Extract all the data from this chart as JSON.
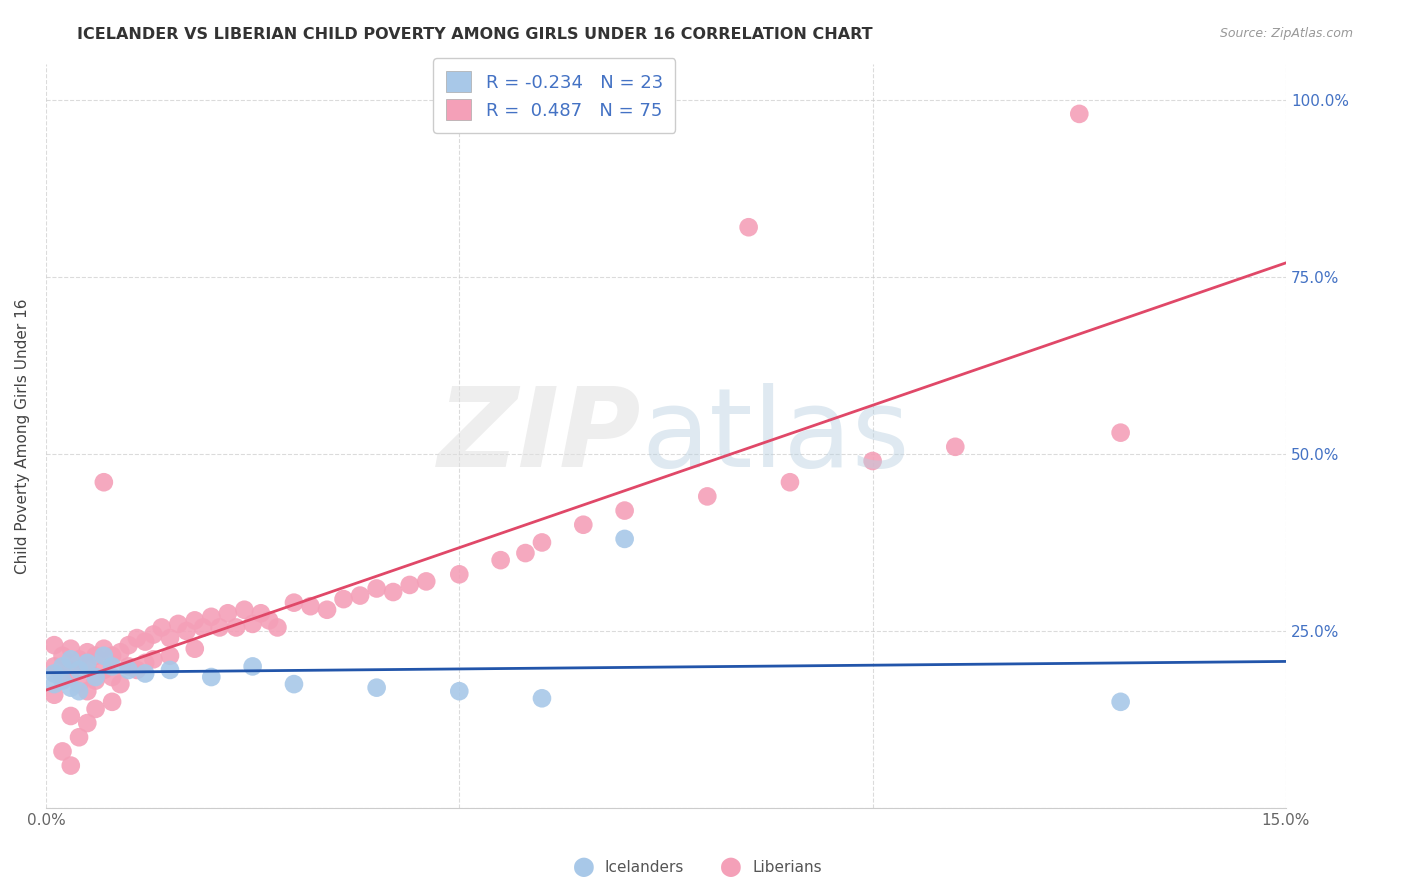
{
  "title": "ICELANDER VS LIBERIAN CHILD POVERTY AMONG GIRLS UNDER 16 CORRELATION CHART",
  "source": "Source: ZipAtlas.com",
  "ylabel": "Child Poverty Among Girls Under 16",
  "xlim": [
    0.0,
    0.15
  ],
  "ylim": [
    0.0,
    1.05
  ],
  "icelanders_R": -0.234,
  "icelanders_N": 23,
  "liberians_R": 0.487,
  "liberians_N": 75,
  "icelanders_color": "#a8c8e8",
  "liberians_color": "#f4a0b8",
  "icelanders_line_color": "#2255aa",
  "liberians_line_color": "#e04868",
  "legend_label_1": "Icelanders",
  "legend_label_2": "Liberians",
  "ice_x": [
    0.001,
    0.001,
    0.002,
    0.002,
    0.003,
    0.003,
    0.004,
    0.004,
    0.005,
    0.006,
    0.007,
    0.008,
    0.01,
    0.012,
    0.015,
    0.02,
    0.025,
    0.03,
    0.04,
    0.05,
    0.06,
    0.13,
    0.07
  ],
  "ice_y": [
    0.19,
    0.175,
    0.2,
    0.18,
    0.21,
    0.17,
    0.195,
    0.165,
    0.205,
    0.185,
    0.215,
    0.2,
    0.195,
    0.19,
    0.195,
    0.185,
    0.2,
    0.175,
    0.17,
    0.165,
    0.155,
    0.15,
    0.38
  ],
  "lib_x": [
    0.001,
    0.001,
    0.001,
    0.002,
    0.002,
    0.002,
    0.003,
    0.003,
    0.003,
    0.003,
    0.004,
    0.004,
    0.004,
    0.005,
    0.005,
    0.005,
    0.005,
    0.006,
    0.006,
    0.006,
    0.007,
    0.007,
    0.007,
    0.008,
    0.008,
    0.008,
    0.009,
    0.009,
    0.01,
    0.01,
    0.011,
    0.011,
    0.012,
    0.012,
    0.013,
    0.013,
    0.014,
    0.015,
    0.015,
    0.016,
    0.017,
    0.018,
    0.018,
    0.019,
    0.02,
    0.021,
    0.022,
    0.023,
    0.024,
    0.025,
    0.026,
    0.027,
    0.028,
    0.03,
    0.032,
    0.034,
    0.036,
    0.038,
    0.04,
    0.042,
    0.044,
    0.046,
    0.05,
    0.055,
    0.058,
    0.06,
    0.065,
    0.07,
    0.08,
    0.085,
    0.09,
    0.1,
    0.11,
    0.125,
    0.13
  ],
  "lib_y": [
    0.23,
    0.2,
    0.16,
    0.215,
    0.185,
    0.08,
    0.225,
    0.195,
    0.13,
    0.06,
    0.21,
    0.175,
    0.1,
    0.2,
    0.22,
    0.165,
    0.12,
    0.215,
    0.18,
    0.14,
    0.225,
    0.195,
    0.46,
    0.215,
    0.185,
    0.15,
    0.22,
    0.175,
    0.23,
    0.2,
    0.24,
    0.195,
    0.235,
    0.205,
    0.245,
    0.21,
    0.255,
    0.24,
    0.215,
    0.26,
    0.25,
    0.265,
    0.225,
    0.255,
    0.27,
    0.255,
    0.275,
    0.255,
    0.28,
    0.26,
    0.275,
    0.265,
    0.255,
    0.29,
    0.285,
    0.28,
    0.295,
    0.3,
    0.31,
    0.305,
    0.315,
    0.32,
    0.33,
    0.35,
    0.36,
    0.375,
    0.4,
    0.42,
    0.44,
    0.82,
    0.46,
    0.49,
    0.51,
    0.98,
    0.53
  ]
}
